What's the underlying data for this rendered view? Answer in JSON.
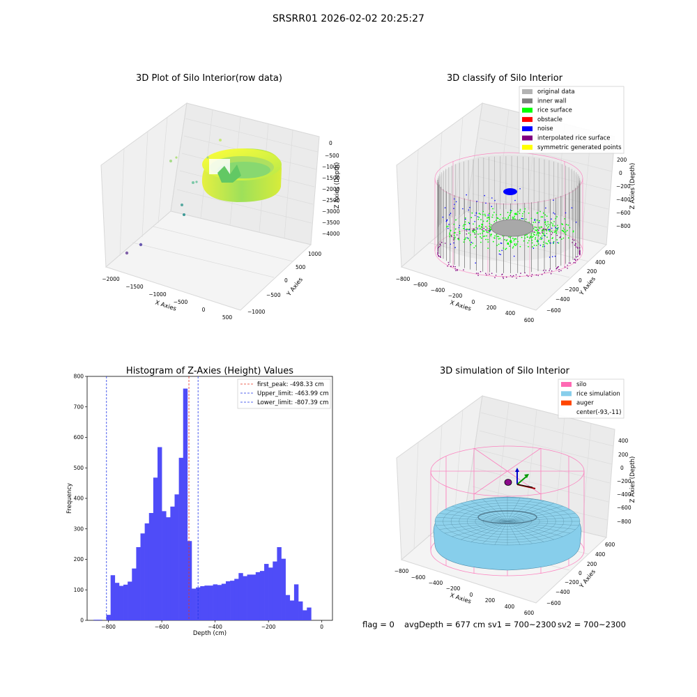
{
  "suptitle": "SRSRR01 2026-02-02 20:25:27",
  "footer": {
    "flag": "flag = 0",
    "avg_depth": "avgDepth = 677 cm",
    "sv1": "sv1 = 700~2300",
    "sv2": "sv2 = 700~2300"
  },
  "colors": {
    "hist_bar": "#4f4cf8",
    "first_peak": "#e8321f",
    "limit": "#1f35e8",
    "silo": "#ff69b4",
    "rice_simulation": "#87ceeb",
    "auger": "#ff4500",
    "rice_surface": "#00ff00",
    "noise": "#0000ff",
    "inner_wall": "#808080",
    "original_data": "#b3b3b3",
    "obstacle": "#ff0000",
    "interpolated": "#800080",
    "symmetric": "#ffff00"
  },
  "chart_data": [
    {
      "type": "scatter",
      "title": "3D Plot of Silo Interior(row data)",
      "xlabel": "X Axies",
      "ylabel": "Y Axies",
      "zlabel": "Z Axies (Depth)",
      "xticks": [
        "−2000",
        "−1500",
        "−1000",
        "−500",
        "0",
        "500"
      ],
      "yticks": [
        "−1000",
        "−500",
        "0",
        "500",
        "1000"
      ],
      "zticks": [
        "0",
        "−500",
        "−1000",
        "−1500",
        "−2000",
        "−2500",
        "−3000",
        "−3500",
        "−4000"
      ]
    },
    {
      "type": "scatter",
      "title": "3D classify of Silo Interior",
      "xlabel": "X Axies",
      "ylabel": "Y Axies",
      "zlabel": "Z Axies (Depth)",
      "xticks": [
        "−800",
        "−600",
        "−400",
        "−200",
        "0",
        "200",
        "400",
        "600"
      ],
      "yticks": [
        "600",
        "400",
        "200",
        "0",
        "−200",
        "−400",
        "−600"
      ],
      "zticks": [
        "200",
        "0",
        "−200",
        "−400",
        "−600",
        "−800"
      ],
      "legend": [
        {
          "label": "original data",
          "color": "#b3b3b3"
        },
        {
          "label": "inner wall",
          "color": "#808080"
        },
        {
          "label": "rice surface",
          "color": "#00ff00"
        },
        {
          "label": "obstacle",
          "color": "#ff0000"
        },
        {
          "label": "noise",
          "color": "#0000ff"
        },
        {
          "label": "interpolated rice surface",
          "color": "#800080"
        },
        {
          "label": "symmetric generated points",
          "color": "#ffff00"
        }
      ],
      "legend_position": "top-right"
    },
    {
      "type": "bar",
      "title": "Histogram of Z-Axies (Height) Values",
      "xlabel": "Depth (cm)",
      "ylabel": "Frequency",
      "xlim": [
        -880,
        40
      ],
      "ylim": [
        0,
        800
      ],
      "xticks": [
        -800,
        -600,
        -400,
        -200,
        0
      ],
      "yticks": [
        0,
        100,
        200,
        300,
        400,
        500,
        600,
        700,
        800
      ],
      "bin_width": 16,
      "bins": [
        [
          -856,
          2
        ],
        [
          -840,
          2
        ],
        [
          -808,
          18
        ],
        [
          -792,
          148
        ],
        [
          -776,
          123
        ],
        [
          -760,
          113
        ],
        [
          -744,
          117
        ],
        [
          -728,
          127
        ],
        [
          -712,
          170
        ],
        [
          -696,
          240
        ],
        [
          -680,
          285
        ],
        [
          -664,
          318
        ],
        [
          -648,
          352
        ],
        [
          -632,
          468
        ],
        [
          -616,
          568
        ],
        [
          -600,
          358
        ],
        [
          -584,
          338
        ],
        [
          -568,
          373
        ],
        [
          -552,
          413
        ],
        [
          -536,
          533
        ],
        [
          -520,
          760
        ],
        [
          -504,
          260
        ],
        [
          -488,
          104
        ],
        [
          -472,
          108
        ],
        [
          -456,
          112
        ],
        [
          -440,
          114
        ],
        [
          -424,
          114
        ],
        [
          -408,
          118
        ],
        [
          -392,
          116
        ],
        [
          -376,
          120
        ],
        [
          -360,
          128
        ],
        [
          -344,
          130
        ],
        [
          -328,
          136
        ],
        [
          -312,
          155
        ],
        [
          -296,
          145
        ],
        [
          -280,
          150
        ],
        [
          -264,
          150
        ],
        [
          -248,
          158
        ],
        [
          -232,
          162
        ],
        [
          -216,
          185
        ],
        [
          -200,
          173
        ],
        [
          -184,
          193
        ],
        [
          -168,
          240
        ],
        [
          -152,
          202
        ],
        [
          -136,
          83
        ],
        [
          -120,
          65
        ],
        [
          -104,
          118
        ],
        [
          -88,
          62
        ],
        [
          -72,
          33
        ],
        [
          -56,
          42
        ]
      ],
      "lines": [
        {
          "label": "first_peak: -498.33 cm",
          "x": -498.33,
          "color": "#e8321f"
        },
        {
          "label": "Upper_limit: -463.99 cm",
          "x": -463.99,
          "color": "#1f35e8"
        },
        {
          "label": "Lower_limit: -807.39 cm",
          "x": -807.39,
          "color": "#1f35e8"
        }
      ],
      "legend_position": "top-right"
    },
    {
      "type": "scatter",
      "title": "3D simulation of Silo Interior",
      "xlabel": "X Axies",
      "ylabel": "Y Axies",
      "zlabel": "Z Axies (Depth)",
      "xticks": [
        "−800",
        "−600",
        "−400",
        "−200",
        "0",
        "200",
        "400",
        "600"
      ],
      "yticks": [
        "600",
        "400",
        "200",
        "0",
        "−200",
        "−400",
        "−600"
      ],
      "zticks": [
        "400",
        "200",
        "0",
        "−200",
        "−400",
        "−600",
        "−800"
      ],
      "legend": [
        {
          "label": "silo",
          "color": "#ff69b4"
        },
        {
          "label": "rice simulation",
          "color": "#87ceeb"
        },
        {
          "label": "auger",
          "color": "#ff4500"
        },
        {
          "label": "center(-93,-11)",
          "color": ""
        }
      ],
      "legend_position": "top-right"
    }
  ]
}
